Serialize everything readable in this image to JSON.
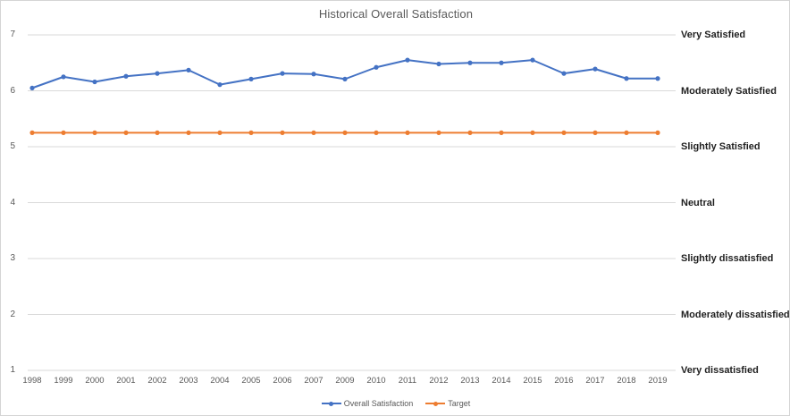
{
  "title": "Historical Overall Satisfaction",
  "colors": {
    "series_blue": "#4472C4",
    "series_orange": "#ED7D31",
    "gridline": "#D9D9D9",
    "axis_text": "#595959",
    "annotation_text": "#1F1F1F",
    "background": "#FFFFFF"
  },
  "legend": {
    "items": [
      {
        "label": "Overall Satisfaction",
        "color": "#4472C4"
      },
      {
        "label": "Target",
        "color": "#ED7D31"
      }
    ],
    "position": "bottom"
  },
  "chart_data": {
    "type": "line",
    "title": "Historical Overall Satisfaction",
    "xlabel": "",
    "ylabel": "",
    "ylim": [
      1,
      7
    ],
    "yticks": [
      7,
      6,
      5,
      4,
      3,
      2,
      1
    ],
    "grid": true,
    "legend_position": "bottom",
    "categories": [
      "1998",
      "1999",
      "2000",
      "2001",
      "2002",
      "2003",
      "2004",
      "2005",
      "2006",
      "2007",
      "2009",
      "2010",
      "2011",
      "2012",
      "2013",
      "2014",
      "2015",
      "2016",
      "2017",
      "2018",
      "2019"
    ],
    "series": [
      {
        "name": "Overall Satisfaction",
        "color": "#4472C4",
        "values": [
          6.05,
          6.25,
          6.16,
          6.26,
          6.31,
          6.37,
          6.11,
          6.21,
          6.31,
          6.3,
          6.21,
          6.42,
          6.55,
          6.48,
          6.5,
          6.5,
          6.55,
          6.31,
          6.39,
          6.22,
          6.22
        ]
      },
      {
        "name": "Target",
        "color": "#ED7D31",
        "values": [
          5.25,
          5.25,
          5.25,
          5.25,
          5.25,
          5.25,
          5.25,
          5.25,
          5.25,
          5.25,
          5.25,
          5.25,
          5.25,
          5.25,
          5.25,
          5.25,
          5.25,
          5.25,
          5.25,
          5.25,
          5.25
        ]
      }
    ],
    "right_axis_labels": [
      {
        "value": 7,
        "label": "Very Satisfied"
      },
      {
        "value": 6,
        "label": "Moderately Satisfied"
      },
      {
        "value": 5,
        "label": "Slightly Satisfied"
      },
      {
        "value": 4,
        "label": "Neutral"
      },
      {
        "value": 3,
        "label": "Slightly dissatisfied"
      },
      {
        "value": 2,
        "label": "Moderately dissatisfied"
      },
      {
        "value": 1,
        "label": "Very dissatisfied"
      }
    ]
  }
}
